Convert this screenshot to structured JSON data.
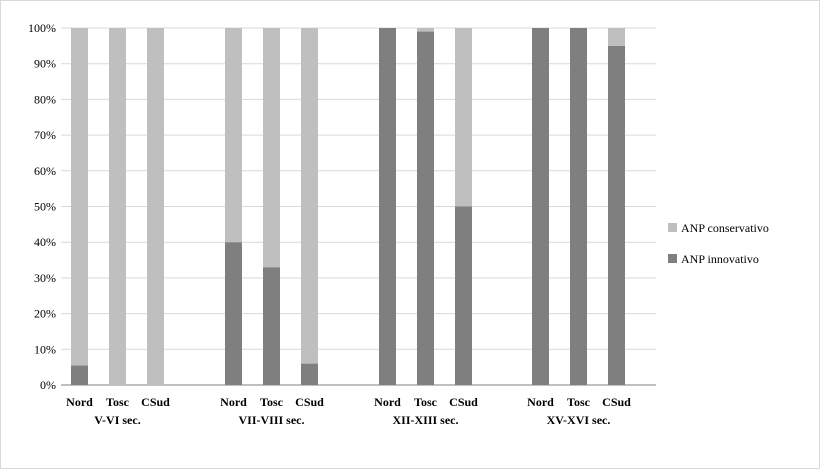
{
  "chart_data": {
    "type": "bar",
    "stacked": true,
    "percent": true,
    "groups": [
      {
        "label": "V-VI sec.",
        "categories": [
          "Nord",
          "Tosc",
          "CSud"
        ]
      },
      {
        "label": "VII-VIII sec.",
        "categories": [
          "Nord",
          "Tosc",
          "CSud"
        ]
      },
      {
        "label": "XII-XIII sec.",
        "categories": [
          "Nord",
          "Tosc",
          "CSud"
        ]
      },
      {
        "label": "XV-XVI sec.",
        "categories": [
          "Nord",
          "Tosc",
          "CSud"
        ]
      }
    ],
    "series": [
      {
        "name": "ANP innovativo",
        "color": "#7f7f7f",
        "values": [
          5.5,
          0,
          0,
          40,
          33,
          6,
          100,
          99,
          50,
          100,
          100,
          95
        ]
      },
      {
        "name": "ANP conservativo",
        "color": "#bfbfbf",
        "values": [
          94.5,
          100,
          100,
          60,
          67,
          94,
          0,
          1,
          50,
          0,
          0,
          5
        ]
      }
    ],
    "yticks": [
      "0%",
      "10%",
      "20%",
      "30%",
      "40%",
      "50%",
      "60%",
      "70%",
      "80%",
      "90%",
      "100%"
    ],
    "ylim": [
      0,
      100
    ],
    "grid": true,
    "legend_position": "right",
    "legend_order": [
      "ANP conservativo",
      "ANP innovativo"
    ],
    "title": "",
    "xlabel": "",
    "ylabel": ""
  }
}
